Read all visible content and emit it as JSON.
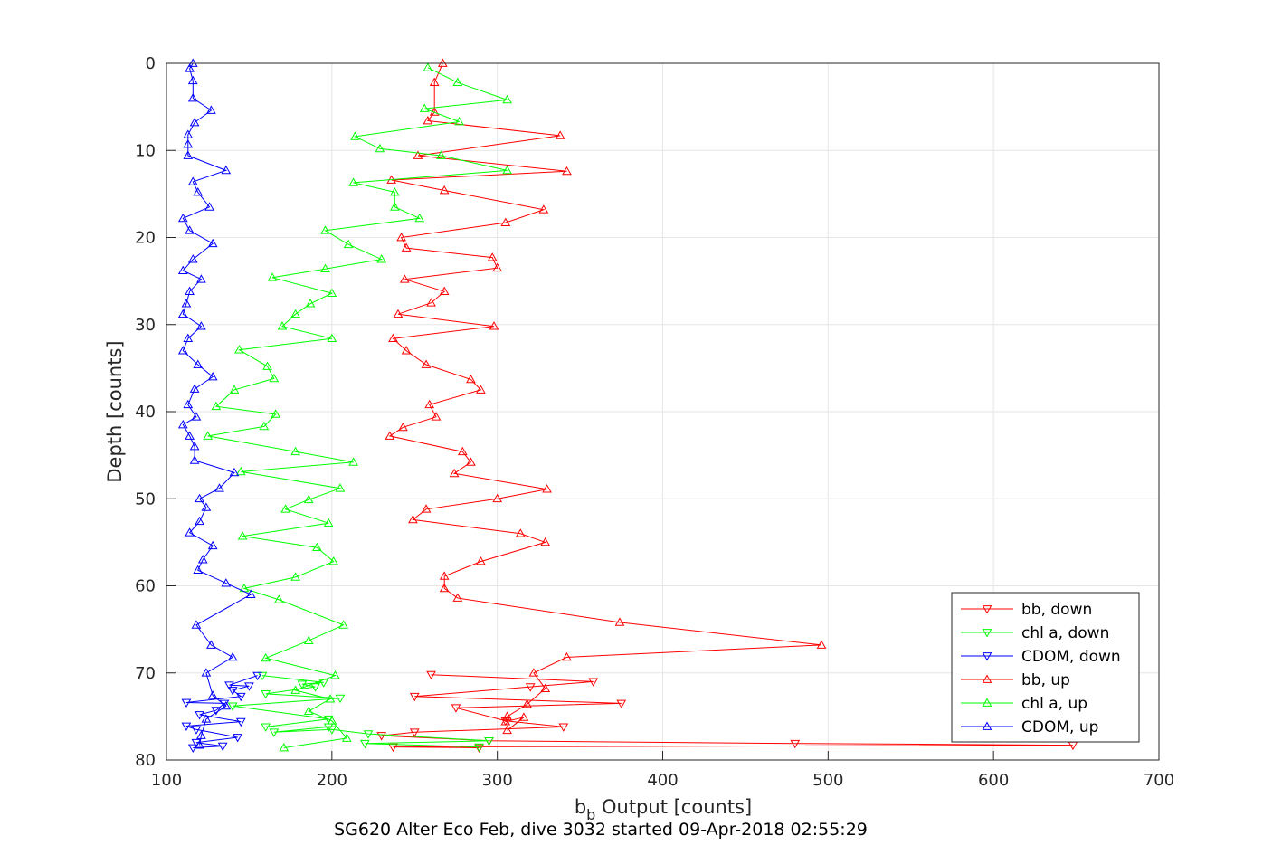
{
  "chart_data": {
    "type": "line",
    "title": "SG620 Alter Eco Feb, dive 3032 started 09-Apr-2018 02:55:29",
    "xlabel": {
      "main": "b",
      "subscript": "b",
      "rest": " Output [counts]"
    },
    "ylabel": "Depth [counts]",
    "xlim": [
      100,
      700
    ],
    "ylim": [
      0,
      80
    ],
    "y_reversed": true,
    "grid": true,
    "legend_position": "bottom-right",
    "xticks": [
      "100",
      "200",
      "300",
      "400",
      "500",
      "600",
      "700"
    ],
    "yticks": [
      "0",
      "10",
      "20",
      "30",
      "40",
      "50",
      "60",
      "70",
      "80"
    ],
    "series": [
      {
        "name": "bb, down",
        "color": "#ff0000",
        "marker": "down",
        "points": [
          [
            260,
            70.2
          ],
          [
            358,
            71.0
          ],
          [
            320,
            71.6
          ],
          [
            250,
            72.7
          ],
          [
            375,
            73.5
          ],
          [
            275,
            74.0
          ],
          [
            305,
            75.5
          ],
          [
            340,
            76.2
          ],
          [
            250,
            76.8
          ],
          [
            230,
            77.2
          ],
          [
            295,
            77.8
          ],
          [
            480,
            78.1
          ],
          [
            648,
            78.3
          ],
          [
            237,
            78.5
          ],
          [
            289,
            78.6
          ]
        ]
      },
      {
        "name": "chl a, down",
        "color": "#00ff00",
        "marker": "down",
        "points": [
          [
            158,
            70.3
          ],
          [
            195,
            71.1
          ],
          [
            182,
            71.3
          ],
          [
            190,
            71.6
          ],
          [
            160,
            72.4
          ],
          [
            205,
            72.9
          ],
          [
            140,
            73.8
          ],
          [
            198,
            75.3
          ],
          [
            160,
            76.2
          ],
          [
            198,
            76.2
          ],
          [
            165,
            76.8
          ],
          [
            200,
            76.5
          ],
          [
            222,
            77.0
          ],
          [
            295,
            77.8
          ],
          [
            220,
            78.1
          ],
          [
            289,
            78.5
          ]
        ]
      },
      {
        "name": "CDOM, down",
        "color": "#0000ff",
        "marker": "down",
        "points": [
          [
            155,
            70.3
          ],
          [
            138,
            71.4
          ],
          [
            150,
            71.5
          ],
          [
            140,
            72.0
          ],
          [
            145,
            72.7
          ],
          [
            112,
            73.4
          ],
          [
            135,
            73.5
          ],
          [
            130,
            74.3
          ],
          [
            120,
            74.8
          ],
          [
            145,
            75.6
          ],
          [
            112,
            76.1
          ],
          [
            118,
            76.5
          ],
          [
            143,
            77.4
          ],
          [
            118,
            78.0
          ],
          [
            134,
            78.4
          ],
          [
            116,
            78.6
          ]
        ]
      },
      {
        "name": "bb, up",
        "color": "#ff0000",
        "marker": "up",
        "points": [
          [
            267,
            0.0
          ],
          [
            262,
            2.2
          ],
          [
            262,
            5.6
          ],
          [
            258,
            6.6
          ],
          [
            338,
            8.3
          ],
          [
            252,
            10.6
          ],
          [
            342,
            12.4
          ],
          [
            236,
            13.4
          ],
          [
            268,
            14.6
          ],
          [
            328,
            16.8
          ],
          [
            305,
            18.3
          ],
          [
            242,
            20.0
          ],
          [
            245,
            21.2
          ],
          [
            297,
            22.3
          ],
          [
            300,
            23.5
          ],
          [
            244,
            24.8
          ],
          [
            268,
            26.2
          ],
          [
            260,
            27.5
          ],
          [
            240,
            28.8
          ],
          [
            298,
            30.2
          ],
          [
            237,
            31.6
          ],
          [
            245,
            33.0
          ],
          [
            257,
            34.6
          ],
          [
            284,
            36.3
          ],
          [
            290,
            37.5
          ],
          [
            259,
            39.2
          ],
          [
            263,
            40.6
          ],
          [
            243,
            41.8
          ],
          [
            235,
            42.8
          ],
          [
            279,
            44.6
          ],
          [
            284,
            45.8
          ],
          [
            274,
            47.1
          ],
          [
            330,
            48.9
          ],
          [
            300,
            50.0
          ],
          [
            257,
            51.2
          ],
          [
            249,
            52.4
          ],
          [
            314,
            54.0
          ],
          [
            329,
            55.0
          ],
          [
            290,
            57.2
          ],
          [
            268,
            58.9
          ],
          [
            268,
            60.3
          ],
          [
            276,
            61.4
          ],
          [
            374,
            64.2
          ],
          [
            496,
            66.8
          ],
          [
            342,
            68.2
          ],
          [
            322,
            70.0
          ],
          [
            329,
            71.8
          ],
          [
            318,
            73.6
          ],
          [
            306,
            75.0
          ],
          [
            305,
            75.6
          ],
          [
            316,
            75.1
          ],
          [
            306,
            76.6
          ]
        ]
      },
      {
        "name": "chl a, up",
        "color": "#00ff00",
        "marker": "up",
        "points": [
          [
            258,
            0.5
          ],
          [
            276,
            2.2
          ],
          [
            306,
            4.2
          ],
          [
            256,
            5.2
          ],
          [
            277,
            6.7
          ],
          [
            214,
            8.4
          ],
          [
            229,
            9.8
          ],
          [
            266,
            10.6
          ],
          [
            306,
            12.3
          ],
          [
            213,
            13.7
          ],
          [
            238,
            14.8
          ],
          [
            238,
            16.5
          ],
          [
            253,
            17.8
          ],
          [
            196,
            19.2
          ],
          [
            210,
            20.8
          ],
          [
            230,
            22.5
          ],
          [
            196,
            23.6
          ],
          [
            164,
            24.6
          ],
          [
            200,
            26.4
          ],
          [
            187,
            27.6
          ],
          [
            178,
            28.8
          ],
          [
            170,
            30.2
          ],
          [
            200,
            31.6
          ],
          [
            144,
            32.9
          ],
          [
            161,
            34.8
          ],
          [
            165,
            36.2
          ],
          [
            141,
            37.5
          ],
          [
            130,
            39.4
          ],
          [
            166,
            40.3
          ],
          [
            159,
            41.7
          ],
          [
            125,
            42.8
          ],
          [
            178,
            44.6
          ],
          [
            213,
            45.8
          ],
          [
            145,
            46.9
          ],
          [
            205,
            48.8
          ],
          [
            186,
            50.1
          ],
          [
            172,
            51.2
          ],
          [
            198,
            52.8
          ],
          [
            146,
            54.3
          ],
          [
            191,
            55.6
          ],
          [
            201,
            57.2
          ],
          [
            178,
            59.0
          ],
          [
            147,
            60.3
          ],
          [
            168,
            61.6
          ],
          [
            207,
            64.5
          ],
          [
            186,
            66.3
          ],
          [
            160,
            68.3
          ],
          [
            202,
            70.3
          ],
          [
            178,
            72.0
          ],
          [
            199,
            73.0
          ],
          [
            186,
            74.4
          ],
          [
            200,
            75.5
          ],
          [
            209,
            77.5
          ],
          [
            171,
            78.6
          ]
        ]
      },
      {
        "name": "CDOM, up",
        "color": "#0000ff",
        "marker": "up",
        "points": [
          [
            116,
            0.0
          ],
          [
            114,
            0.6
          ],
          [
            116,
            2.0
          ],
          [
            116,
            4.0
          ],
          [
            127,
            5.4
          ],
          [
            117,
            6.8
          ],
          [
            113,
            8.2
          ],
          [
            113,
            9.3
          ],
          [
            113,
            10.6
          ],
          [
            136,
            12.3
          ],
          [
            116,
            13.6
          ],
          [
            119,
            14.8
          ],
          [
            126,
            16.5
          ],
          [
            110,
            17.8
          ],
          [
            114,
            19.2
          ],
          [
            128,
            20.7
          ],
          [
            116,
            22.5
          ],
          [
            110,
            23.8
          ],
          [
            121,
            24.8
          ],
          [
            114,
            26.2
          ],
          [
            112,
            27.6
          ],
          [
            110,
            28.8
          ],
          [
            121,
            30.2
          ],
          [
            113,
            31.6
          ],
          [
            110,
            33.0
          ],
          [
            119,
            34.6
          ],
          [
            128,
            36.0
          ],
          [
            117,
            37.4
          ],
          [
            113,
            39.2
          ],
          [
            118,
            40.6
          ],
          [
            110,
            41.5
          ],
          [
            114,
            42.8
          ],
          [
            117,
            44.0
          ],
          [
            117,
            45.6
          ],
          [
            141,
            47.0
          ],
          [
            132,
            48.8
          ],
          [
            120,
            50.0
          ],
          [
            124,
            51.0
          ],
          [
            120,
            52.6
          ],
          [
            114,
            53.9
          ],
          [
            128,
            55.4
          ],
          [
            122,
            57.0
          ],
          [
            119,
            58.2
          ],
          [
            136,
            59.7
          ],
          [
            151,
            61.0
          ],
          [
            118,
            64.5
          ],
          [
            127,
            66.8
          ],
          [
            140,
            68.2
          ],
          [
            124,
            70.0
          ],
          [
            128,
            72.6
          ],
          [
            136,
            73.8
          ],
          [
            124,
            75.3
          ],
          [
            121,
            77.2
          ],
          [
            120,
            78.3
          ]
        ]
      }
    ]
  }
}
